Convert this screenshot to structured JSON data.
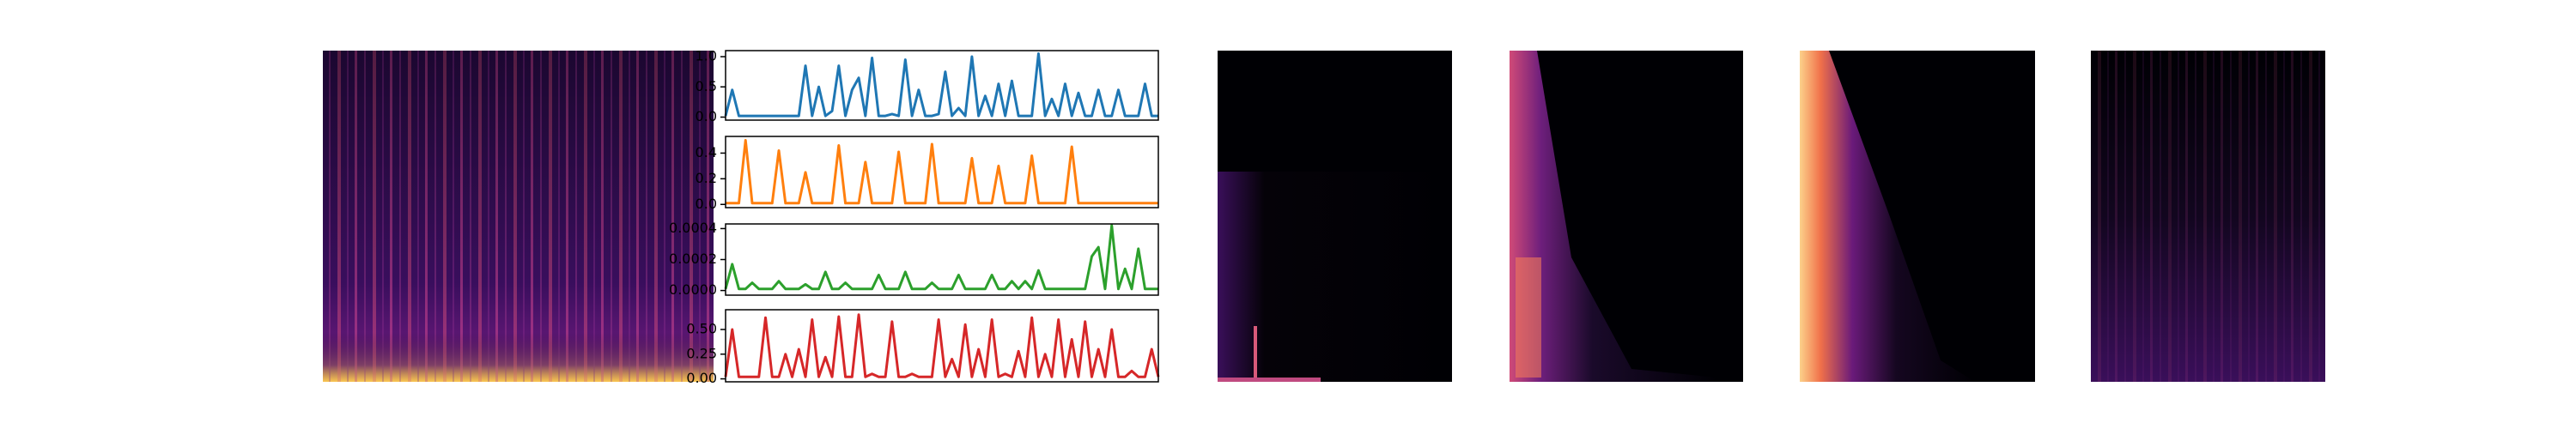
{
  "chart_data": [
    {
      "type": "line",
      "color": "#1f77b4",
      "values": [
        0.02,
        0.45,
        0.02,
        0.02,
        0.02,
        0.02,
        0.02,
        0.02,
        0.02,
        0.02,
        0.02,
        0.02,
        0.85,
        0.02,
        0.5,
        0.02,
        0.1,
        0.85,
        0.02,
        0.45,
        0.65,
        0.02,
        0.98,
        0.02,
        0.02,
        0.05,
        0.02,
        0.95,
        0.02,
        0.45,
        0.02,
        0.02,
        0.05,
        0.75,
        0.02,
        0.15,
        0.02,
        1.0,
        0.02,
        0.35,
        0.02,
        0.55,
        0.02,
        0.6,
        0.02,
        0.02,
        0.02,
        1.05,
        0.02,
        0.3,
        0.02,
        0.55,
        0.02,
        0.4,
        0.02,
        0.02,
        0.45,
        0.02,
        0.02,
        0.45,
        0.02,
        0.02,
        0.02,
        0.55,
        0.02,
        0.02
      ],
      "ylim": [
        -0.05,
        1.1
      ],
      "yticks": [
        {
          "value": 0,
          "label": "0.0"
        },
        {
          "value": 0.5,
          "label": "0.5"
        },
        {
          "value": 1,
          "label": "1.0"
        }
      ]
    },
    {
      "type": "line",
      "color": "#ff7f0e",
      "values": [
        0.01,
        0.01,
        0.01,
        0.5,
        0.01,
        0.01,
        0.01,
        0.01,
        0.42,
        0.01,
        0.01,
        0.01,
        0.25,
        0.01,
        0.01,
        0.01,
        0.01,
        0.46,
        0.01,
        0.01,
        0.01,
        0.33,
        0.01,
        0.01,
        0.01,
        0.01,
        0.41,
        0.01,
        0.01,
        0.01,
        0.01,
        0.47,
        0.01,
        0.01,
        0.01,
        0.01,
        0.01,
        0.36,
        0.01,
        0.01,
        0.01,
        0.3,
        0.01,
        0.01,
        0.01,
        0.01,
        0.38,
        0.01,
        0.01,
        0.01,
        0.01,
        0.01,
        0.45,
        0.01,
        0.01,
        0.01,
        0.01,
        0.01,
        0.01,
        0.01,
        0.01,
        0.01,
        0.01,
        0.01,
        0.01,
        0.01
      ],
      "ylim": [
        -0.025,
        0.53
      ],
      "yticks": [
        {
          "value": 0,
          "label": "0.0"
        },
        0.2,
        0.4
      ]
    },
    {
      "type": "line",
      "color": "#2ca02c",
      "values": [
        1e-05,
        0.00017,
        1e-05,
        1e-05,
        5e-05,
        1e-05,
        1e-05,
        1e-05,
        6e-05,
        1e-05,
        1e-05,
        1e-05,
        4e-05,
        1e-05,
        1e-05,
        0.00012,
        1e-05,
        1e-05,
        5e-05,
        1e-05,
        1e-05,
        1e-05,
        1e-05,
        0.0001,
        1e-05,
        1e-05,
        1e-05,
        0.00012,
        1e-05,
        1e-05,
        1e-05,
        5e-05,
        1e-05,
        1e-05,
        1e-05,
        0.0001,
        1e-05,
        1e-05,
        1e-05,
        1e-05,
        0.0001,
        1e-05,
        1e-05,
        6e-05,
        1e-05,
        6e-05,
        1e-05,
        0.00013,
        1e-05,
        1e-05,
        1e-05,
        1e-05,
        1e-05,
        1e-05,
        1e-05,
        0.00022,
        0.00028,
        1e-05,
        0.00042,
        1e-05,
        0.00014,
        1e-05,
        0.00027,
        1e-05,
        1e-05,
        1e-05
      ],
      "ylim": [
        -3e-05,
        0.00043
      ],
      "yticks": [
        {
          "value": 0,
          "label": "0.0000"
        },
        {
          "value": 0.0002,
          "label": "0.0002"
        },
        {
          "value": 0.0004,
          "label": "0.0004"
        }
      ]
    },
    {
      "type": "line",
      "color": "#d62728",
      "values": [
        0.02,
        0.5,
        0.02,
        0.02,
        0.02,
        0.02,
        0.62,
        0.02,
        0.02,
        0.25,
        0.02,
        0.3,
        0.02,
        0.6,
        0.02,
        0.22,
        0.02,
        0.63,
        0.02,
        0.02,
        0.65,
        0.02,
        0.05,
        0.02,
        0.02,
        0.58,
        0.02,
        0.02,
        0.05,
        0.02,
        0.02,
        0.02,
        0.6,
        0.02,
        0.2,
        0.02,
        0.55,
        0.02,
        0.3,
        0.02,
        0.6,
        0.02,
        0.05,
        0.02,
        0.28,
        0.02,
        0.62,
        0.02,
        0.25,
        0.02,
        0.6,
        0.02,
        0.4,
        0.02,
        0.58,
        0.02,
        0.3,
        0.02,
        0.5,
        0.02,
        0.02,
        0.08,
        0.02,
        0.02,
        0.3,
        0.02
      ],
      "ylim": [
        -0.03,
        0.7
      ],
      "yticks": [
        {
          "value": 0,
          "label": "0.00"
        },
        {
          "value": 0.25,
          "label": "0.25"
        },
        {
          "value": 0.5,
          "label": "0.50"
        }
      ]
    }
  ]
}
